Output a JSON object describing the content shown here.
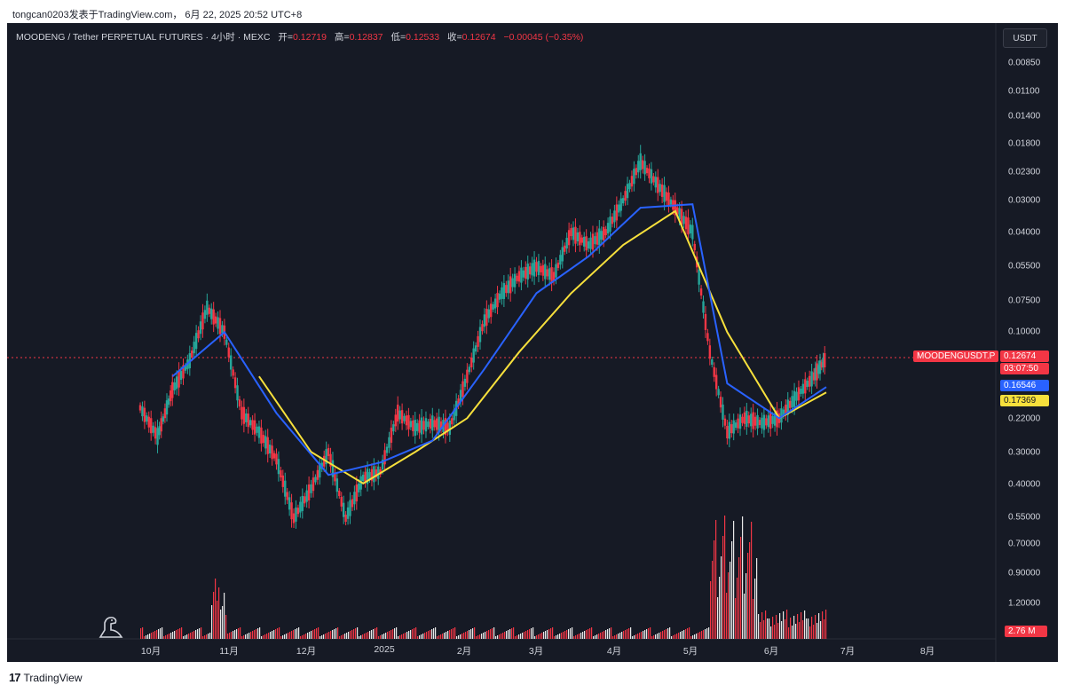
{
  "watermark": "tongcan0203发表于TradingView.com， 6月 22, 2025 20:52 UTC+8",
  "legend": {
    "symbol_line": "MOODENG / Tether PERPETUAL FUTURES · 4小时 · MEXC",
    "open_label": "开=",
    "open_value": "0.12719",
    "high_label": "高=",
    "high_value": "0.12837",
    "low_label": "低=",
    "low_value": "0.12533",
    "close_label": "收=",
    "close_value": "0.12674",
    "change_value": "−0.00045 (−0.35%)"
  },
  "unit_button": "USDT",
  "price_axis": [
    "0.00850",
    "0.01100",
    "0.01400",
    "0.01800",
    "0.02300",
    "0.03000",
    "0.04000",
    "0.05500",
    "0.07500",
    "0.10000",
    "0.22000",
    "0.30000",
    "0.40000",
    "0.55000",
    "0.70000",
    "0.90000",
    "1.20000"
  ],
  "time_axis": [
    "10月",
    "11月",
    "12月",
    "2025",
    "2月",
    "3月",
    "4月",
    "5月",
    "6月",
    "7月",
    "8月"
  ],
  "badges": {
    "symbol": "MOODENGUSDT.P",
    "last_price": "0.12674",
    "countdown": "03:07:50",
    "ma_fast": "0.16546",
    "ma_slow": "0.17369",
    "volume": "2.76 M"
  },
  "colors": {
    "background": "#161a25",
    "up": "#26a69a",
    "down": "#f23645",
    "ma_fast": "#2962ff",
    "ma_slow": "#f7e03c",
    "text": "#d1d4dc"
  },
  "brand": {
    "logo": "17",
    "name": "TradingView"
  },
  "chart_data": {
    "type": "line",
    "y_axis_inverted_log": true,
    "x_ticks": [
      "10月",
      "11月",
      "12月",
      "2025",
      "2月",
      "3月",
      "4月",
      "5月",
      "6月",
      "7月",
      "8月"
    ],
    "series": [
      {
        "x": [
          "2024-09-18",
          "2024-09-25",
          "2024-10-01",
          "2024-10-08",
          "2024-10-15",
          "2024-10-22",
          "2024-10-29",
          "2024-11-05",
          "2024-11-12",
          "2024-11-19",
          "2024-11-26",
          "2024-12-03",
          "2024-12-10",
          "2024-12-17",
          "2024-12-24",
          "2024-12-31",
          "2025-01-07",
          "2025-01-14",
          "2025-01-21",
          "2025-01-28",
          "2025-02-04",
          "2025-02-11",
          "2025-02-18",
          "2025-02-25",
          "2025-03-04",
          "2025-03-11",
          "2025-03-18",
          "2025-03-25",
          "2025-04-01",
          "2025-04-08",
          "2025-04-15",
          "2025-04-22",
          "2025-04-29",
          "2025-05-06",
          "2025-05-13",
          "2025-05-20",
          "2025-05-27",
          "2025-06-03",
          "2025-06-10",
          "2025-06-17",
          "2025-06-22"
        ],
        "y": [
          0.2,
          0.26,
          0.17,
          0.13,
          0.08,
          0.1,
          0.21,
          0.25,
          0.32,
          0.55,
          0.42,
          0.3,
          0.55,
          0.38,
          0.36,
          0.21,
          0.24,
          0.23,
          0.24,
          0.15,
          0.09,
          0.07,
          0.06,
          0.055,
          0.06,
          0.04,
          0.045,
          0.04,
          0.03,
          0.021,
          0.026,
          0.032,
          0.04,
          0.12,
          0.25,
          0.22,
          0.23,
          0.22,
          0.18,
          0.15,
          0.12674
        ]
      },
      {
        "x": [
          "2024-10-01",
          "2024-10-22",
          "2024-11-12",
          "2024-12-03",
          "2024-12-24",
          "2025-01-14",
          "2025-02-04",
          "2025-02-25",
          "2025-03-18",
          "2025-04-08",
          "2025-04-29",
          "2025-05-13",
          "2025-06-03",
          "2025-06-22"
        ],
        "y": [
          0.15,
          0.1,
          0.21,
          0.37,
          0.33,
          0.27,
          0.14,
          0.07,
          0.05,
          0.032,
          0.031,
          0.16,
          0.22,
          0.16546
        ]
      },
      {
        "x": [
          "2024-11-05",
          "2024-11-26",
          "2024-12-17",
          "2025-01-07",
          "2025-01-28",
          "2025-02-18",
          "2025-03-11",
          "2025-04-01",
          "2025-04-22",
          "2025-05-13",
          "2025-06-03",
          "2025-06-22"
        ],
        "y": [
          0.15,
          0.3,
          0.4,
          0.3,
          0.22,
          0.12,
          0.07,
          0.045,
          0.033,
          0.1,
          0.22,
          0.17369
        ]
      }
    ]
  }
}
